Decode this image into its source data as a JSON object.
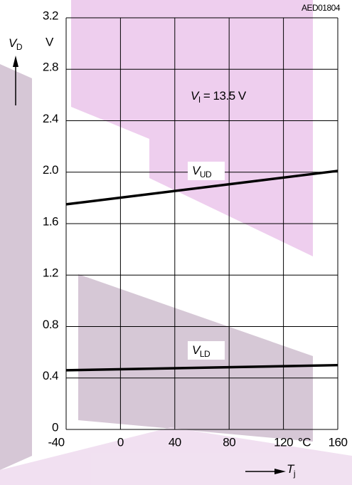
{
  "chart_data": {
    "type": "line",
    "code": "AED01804",
    "y_label": {
      "main": "V",
      "sub": "D"
    },
    "y_unit": "V",
    "x_label": {
      "main": "T",
      "sub": "j"
    },
    "x_unit": "°C",
    "annotation": {
      "main": "V",
      "sub": "I",
      "rest": " = 13.5 V"
    },
    "x": [
      -40,
      160
    ],
    "series": [
      {
        "name": "V",
        "name_sub": "UD",
        "color": "#000000",
        "values": [
          1.75,
          2.01
        ]
      },
      {
        "name": "V",
        "name_sub": "LD",
        "color": "#000000",
        "values": [
          0.46,
          0.5
        ]
      }
    ],
    "xlim": [
      -40,
      160
    ],
    "xticks": [
      -40,
      0,
      40,
      80,
      120,
      160
    ],
    "ylim": [
      0,
      3.2
    ],
    "yticks": [
      0,
      0.4,
      0.8,
      1.2,
      1.6,
      {
        "value": 2,
        "label": "2.0"
      },
      2.4,
      2.8,
      3.2
    ],
    "grid": true
  }
}
